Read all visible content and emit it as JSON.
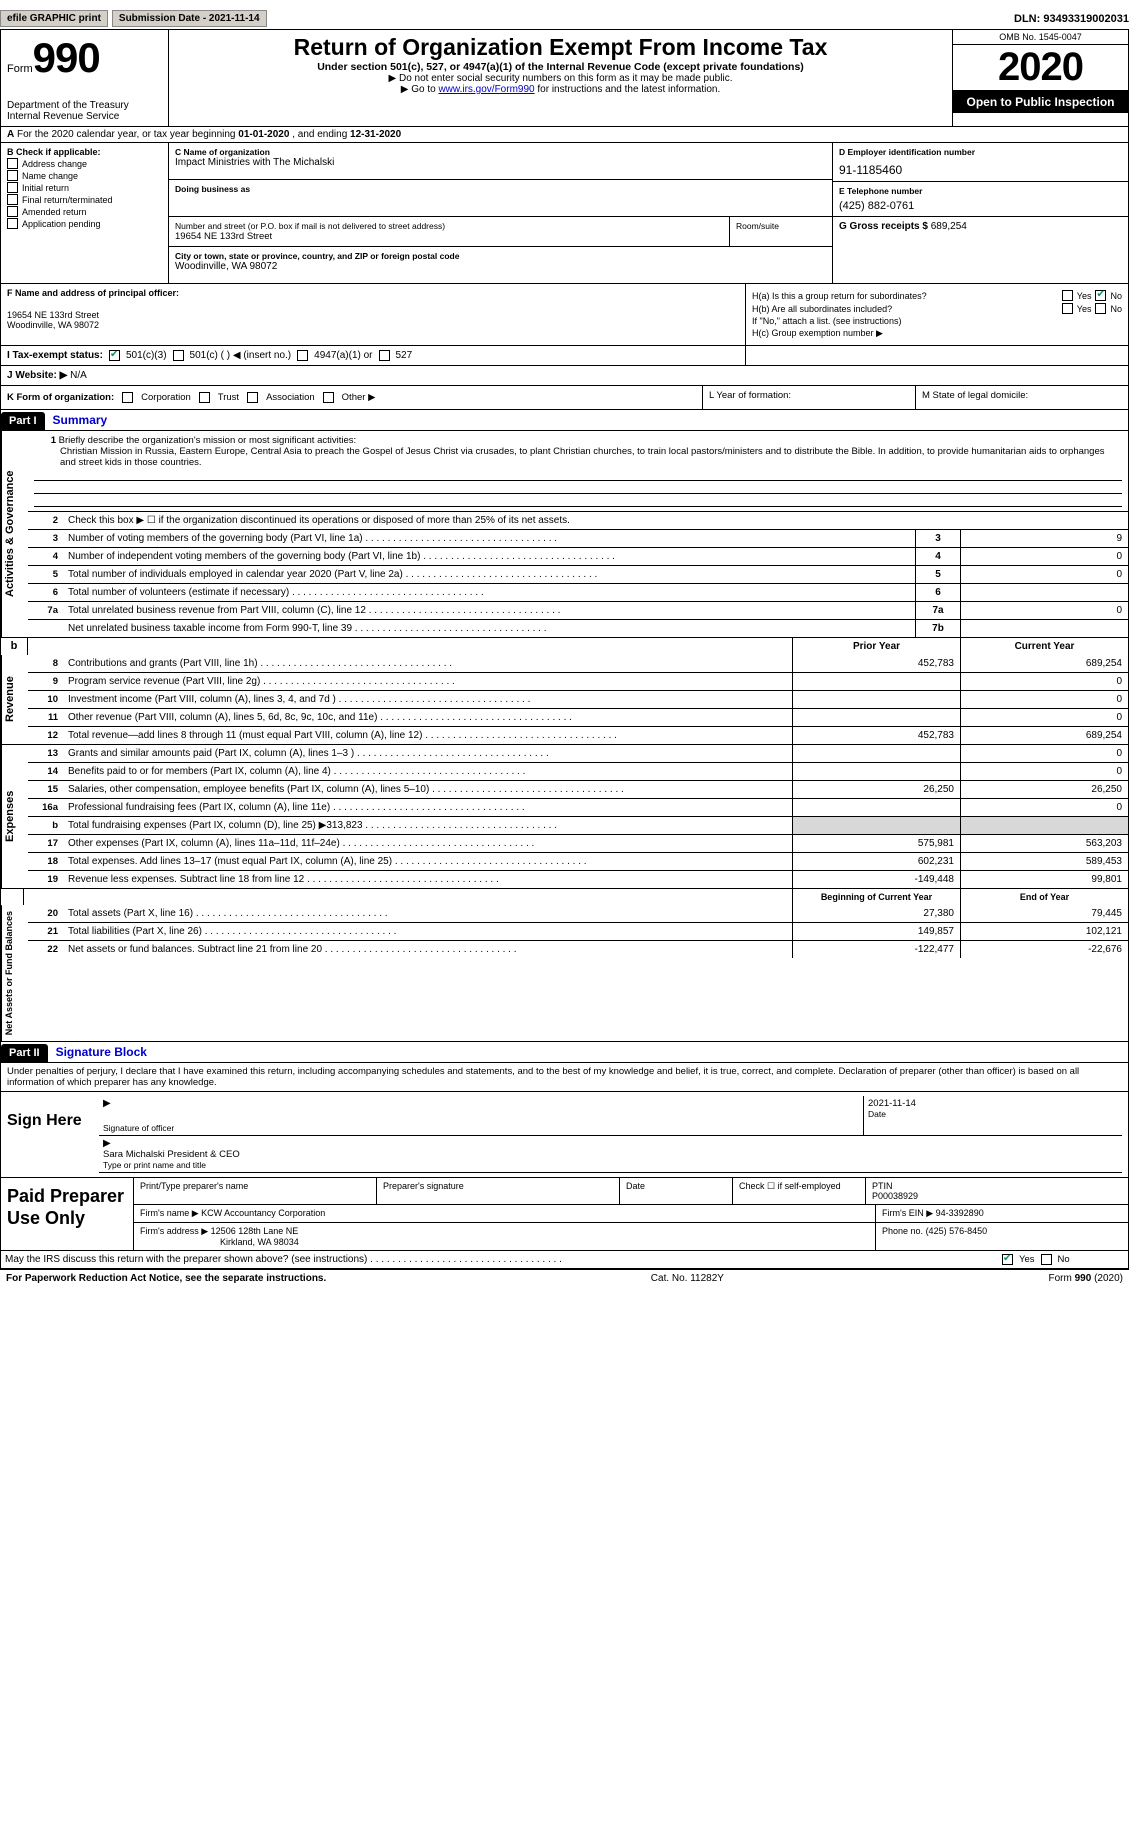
{
  "colors": {
    "background": "#ffffff",
    "text": "#000000",
    "link": "#0000cc",
    "button_bg": "#d4d0c8",
    "check_green": "#009966",
    "part_title": "#0000cc"
  },
  "topBar": {
    "efile": "efile GRAPHIC print",
    "submission": "Submission Date - 2021-11-14",
    "dln": "DLN: 93493319002031"
  },
  "header": {
    "form_word": "Form",
    "form_num": "990",
    "dept": "Department of the Treasury\nInternal Revenue Service",
    "title": "Return of Organization Exempt From Income Tax",
    "sub": "Under section 501(c), 527, or 4947(a)(1) of the Internal Revenue Code (except private foundations)",
    "note1": "Do not enter social security numbers on this form as it may be made public.",
    "note2_prefix": "Go to ",
    "note2_link": "www.irs.gov/Form990",
    "note2_suffix": " for instructions and the latest information.",
    "omb": "OMB No. 1545-0047",
    "year": "2020",
    "open": "Open to Public Inspection"
  },
  "lineA": {
    "prefix_a": "A",
    "text": "For the 2020 calendar year, or tax year beginning ",
    "date1": "01-01-2020",
    "mid": "  , and ending ",
    "date2": "12-31-2020"
  },
  "boxB": {
    "label": "B Check if applicable:",
    "items": [
      "Address change",
      "Name change",
      "Initial return",
      "Final return/terminated",
      "Amended return",
      "Application pending"
    ]
  },
  "boxC": {
    "name_label": "C Name of organization",
    "name": "Impact Ministries with The Michalski",
    "dba_label": "Doing business as",
    "dba": "",
    "addr_label": "Number and street (or P.O. box if mail is not delivered to street address)",
    "room_label": "Room/suite",
    "street": "19654 NE 133rd Street",
    "city_label": "City or town, state or province, country, and ZIP or foreign postal code",
    "city": "Woodinville, WA  98072"
  },
  "boxD": {
    "label": "D Employer identification number",
    "value": "91-1185460"
  },
  "boxE": {
    "label": "E Telephone number",
    "value": "(425) 882-0761"
  },
  "boxG": {
    "label": "G Gross receipts $",
    "value": "689,254"
  },
  "boxF": {
    "label": "F Name and address of principal officer:",
    "line1": "19654 NE 133rd Street",
    "line2": "Woodinville, WA  98072"
  },
  "boxH": {
    "ha": "H(a)  Is this a group return for subordinates?",
    "hb": "H(b)  Are all subordinates included?",
    "hb_note": "If \"No,\" attach a list. (see instructions)",
    "hc": "H(c)  Group exemption number ▶"
  },
  "boxI": {
    "label": "I  Tax-exempt status:",
    "opt1": "501(c)(3)",
    "opt2": "501(c) (  ) ◀ (insert no.)",
    "opt3": "4947(a)(1) or",
    "opt4": "527"
  },
  "boxJ": {
    "label": "J  Website: ▶",
    "value": "N/A"
  },
  "boxK": {
    "label": "K Form of organization:",
    "opts": [
      "Corporation",
      "Trust",
      "Association",
      "Other ▶"
    ]
  },
  "boxL": {
    "label": "L Year of formation:"
  },
  "boxM": {
    "label": "M State of legal domicile:"
  },
  "part1": {
    "bar": "Part I",
    "title": "Summary",
    "line1_label": "Briefly describe the organization's mission or most significant activities:",
    "line1_text": "Christian Mission in Russia, Eastern Europe, Central Asia to preach the Gospel of Jesus Christ via crusades, to plant Christian churches, to train local pastors/ministers and to distribute the Bible. In addition, to provide humanitarian aids to orphanges and street kids in those countries.",
    "line2": "Check this box ▶ ☐ if the organization discontinued its operations or disposed of more than 25% of its net assets.",
    "rows_gov": [
      {
        "n": "3",
        "t": "Number of voting members of the governing body (Part VI, line 1a)",
        "ref": "3",
        "v": "9"
      },
      {
        "n": "4",
        "t": "Number of independent voting members of the governing body (Part VI, line 1b)",
        "ref": "4",
        "v": "0"
      },
      {
        "n": "5",
        "t": "Total number of individuals employed in calendar year 2020 (Part V, line 2a)",
        "ref": "5",
        "v": "0"
      },
      {
        "n": "6",
        "t": "Total number of volunteers (estimate if necessary)",
        "ref": "6",
        "v": ""
      },
      {
        "n": "7a",
        "t": "Total unrelated business revenue from Part VIII, column (C), line 12",
        "ref": "7a",
        "v": "0"
      },
      {
        "n": "",
        "t": "Net unrelated business taxable income from Form 990-T, line 39",
        "ref": "7b",
        "v": ""
      }
    ],
    "col_headers": {
      "prior": "Prior Year",
      "curr": "Current Year"
    },
    "rows_rev": [
      {
        "n": "8",
        "t": "Contributions and grants (Part VIII, line 1h)",
        "p": "452,783",
        "c": "689,254"
      },
      {
        "n": "9",
        "t": "Program service revenue (Part VIII, line 2g)",
        "p": "",
        "c": "0"
      },
      {
        "n": "10",
        "t": "Investment income (Part VIII, column (A), lines 3, 4, and 7d )",
        "p": "",
        "c": "0"
      },
      {
        "n": "11",
        "t": "Other revenue (Part VIII, column (A), lines 5, 6d, 8c, 9c, 10c, and 11e)",
        "p": "",
        "c": "0"
      },
      {
        "n": "12",
        "t": "Total revenue—add lines 8 through 11 (must equal Part VIII, column (A), line 12)",
        "p": "452,783",
        "c": "689,254"
      }
    ],
    "rows_exp": [
      {
        "n": "13",
        "t": "Grants and similar amounts paid (Part IX, column (A), lines 1–3 )",
        "p": "",
        "c": "0"
      },
      {
        "n": "14",
        "t": "Benefits paid to or for members (Part IX, column (A), line 4)",
        "p": "",
        "c": "0"
      },
      {
        "n": "15",
        "t": "Salaries, other compensation, employee benefits (Part IX, column (A), lines 5–10)",
        "p": "26,250",
        "c": "26,250"
      },
      {
        "n": "16a",
        "t": "Professional fundraising fees (Part IX, column (A), line 11e)",
        "p": "",
        "c": "0"
      },
      {
        "n": "b",
        "t": "Total fundraising expenses (Part IX, column (D), line 25) ▶313,823",
        "p": "gray",
        "c": "gray"
      },
      {
        "n": "17",
        "t": "Other expenses (Part IX, column (A), lines 11a–11d, 11f–24e)",
        "p": "575,981",
        "c": "563,203"
      },
      {
        "n": "18",
        "t": "Total expenses. Add lines 13–17 (must equal Part IX, column (A), line 25)",
        "p": "602,231",
        "c": "589,453"
      },
      {
        "n": "19",
        "t": "Revenue less expenses. Subtract line 18 from line 12",
        "p": "-149,448",
        "c": "99,801"
      }
    ],
    "col_headers_na": {
      "prior": "Beginning of Current Year",
      "curr": "End of Year"
    },
    "rows_na": [
      {
        "n": "20",
        "t": "Total assets (Part X, line 16)",
        "p": "27,380",
        "c": "79,445"
      },
      {
        "n": "21",
        "t": "Total liabilities (Part X, line 26)",
        "p": "149,857",
        "c": "102,121"
      },
      {
        "n": "22",
        "t": "Net assets or fund balances. Subtract line 21 from line 20",
        "p": "-122,477",
        "c": "-22,676"
      }
    ]
  },
  "side_labels": {
    "gov": "Activities & Governance",
    "rev": "Revenue",
    "exp": "Expenses",
    "na": "Net Assets or Fund Balances"
  },
  "part2": {
    "bar": "Part II",
    "title": "Signature Block",
    "perjury": "Under penalties of perjury, I declare that I have examined this return, including accompanying schedules and statements, and to the best of my knowledge and belief, it is true, correct, and complete. Declaration of preparer (other than officer) is based on all information of which preparer has any knowledge.",
    "sign_here": "Sign Here",
    "sig_officer_label": "Signature of officer",
    "sig_date": "2021-11-14",
    "date_label": "Date",
    "officer_name": "Sara Michalski  President & CEO",
    "officer_name_label": "Type or print name and title",
    "paid_prep": "Paid Preparer Use Only",
    "prep_h1": "Print/Type preparer's name",
    "prep_h2": "Preparer's signature",
    "prep_h3": "Date",
    "prep_h4_a": "Check ☐ if self-employed",
    "prep_h5": "PTIN",
    "ptin": "P00038929",
    "firm_name_l": "Firm's name    ▶",
    "firm_name": "KCW Accountancy Corporation",
    "firm_ein_l": "Firm's EIN ▶",
    "firm_ein": "94-3392890",
    "firm_addr_l": "Firm's address ▶",
    "firm_addr1": "12506 128th Lane NE",
    "firm_addr2": "Kirkland, WA  98034",
    "phone_l": "Phone no.",
    "phone": "(425) 576-8450",
    "discuss": "May the IRS discuss this return with the preparer shown above? (see instructions)"
  },
  "footer": {
    "left": "For Paperwork Reduction Act Notice, see the separate instructions.",
    "mid": "Cat. No. 11282Y",
    "right_a": "Form ",
    "right_b": "990",
    "right_c": " (2020)"
  },
  "yn": {
    "yes": "Yes",
    "no": "No"
  }
}
